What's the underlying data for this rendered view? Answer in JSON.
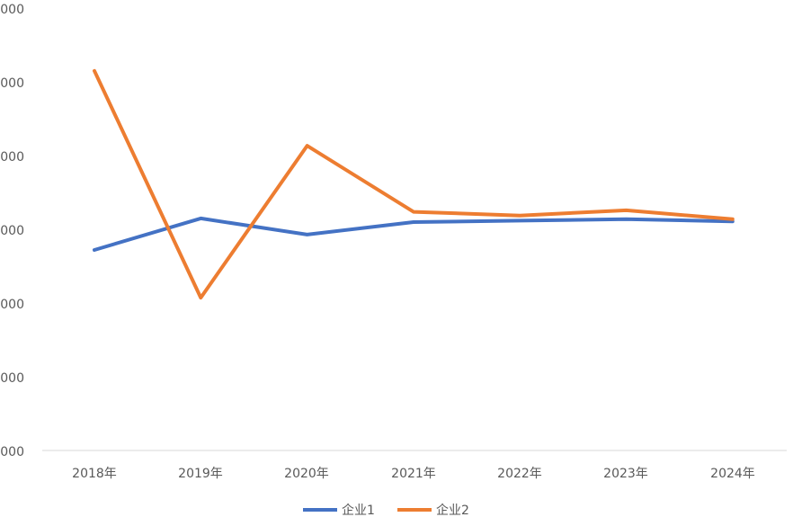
{
  "chart_data": {
    "type": "line",
    "categories": [
      "2018年",
      "2019年",
      "2020年",
      "2021年",
      "2022年",
      "2023年",
      "2024年"
    ],
    "y_tick_labels": [
      "000",
      "000",
      "000",
      "000",
      "000",
      "000",
      "000"
    ],
    "ylim": [
      0,
      6
    ],
    "grid": false,
    "legend_position": "bottom",
    "series": [
      {
        "name": "企业1",
        "color": "#4472C4",
        "values": [
          2.73,
          3.16,
          2.94,
          3.11,
          3.13,
          3.15,
          3.12
        ]
      },
      {
        "name": "企业2",
        "color": "#ED7D31",
        "values": [
          5.17,
          2.08,
          4.15,
          3.25,
          3.2,
          3.27,
          3.15
        ]
      }
    ]
  }
}
